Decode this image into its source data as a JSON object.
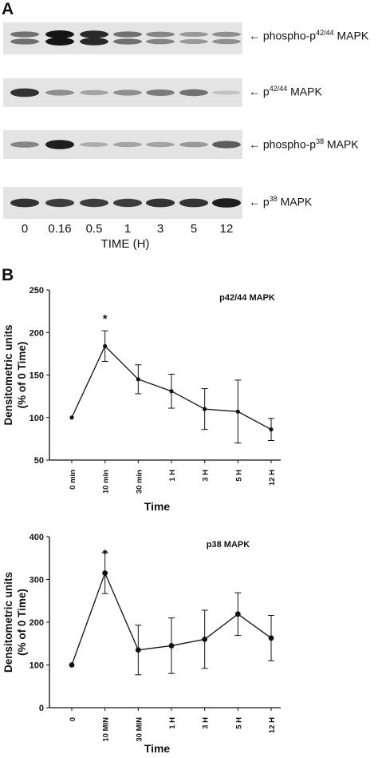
{
  "panel_a": {
    "letter": "A",
    "blots": [
      {
        "arrow": "←",
        "prefix": "phospho-p",
        "sup": "42/44",
        "suffix": " MAPK",
        "band_intensity": [
          0.55,
          1.0,
          0.9,
          0.55,
          0.45,
          0.35,
          0.4
        ],
        "doublet": true
      },
      {
        "arrow": "←",
        "prefix": "p",
        "sup": "42/44",
        "suffix": " MAPK",
        "band_intensity": [
          0.85,
          0.4,
          0.3,
          0.4,
          0.5,
          0.55,
          0.15
        ],
        "doublet": false
      },
      {
        "arrow": "←",
        "prefix": "phospho-p",
        "sup": "38",
        "suffix": " MAPK",
        "band_intensity": [
          0.45,
          0.95,
          0.25,
          0.3,
          0.3,
          0.35,
          0.65
        ],
        "doublet": false
      },
      {
        "arrow": "←",
        "prefix": "p",
        "sup": "38",
        "suffix": " MAPK",
        "band_intensity": [
          0.85,
          0.8,
          0.8,
          0.8,
          0.85,
          0.85,
          0.95
        ],
        "doublet": false
      }
    ],
    "lanes": [
      "0",
      "0.16",
      "0.5",
      "1",
      "3",
      "5",
      "12"
    ],
    "xlabel": "TIME (H)"
  },
  "panel_b": {
    "letter": "B"
  },
  "chart_data": [
    {
      "type": "line",
      "title": "p42/44 MAPK",
      "categories": [
        "0 min",
        "10 min",
        "30 min",
        "1 H",
        "3 H",
        "5 H",
        "12 H"
      ],
      "values": [
        100,
        184,
        145,
        131,
        110,
        107,
        86
      ],
      "errors": [
        0,
        18,
        17,
        20,
        24,
        37,
        13
      ],
      "significance": [
        "",
        "*",
        "",
        "",
        "",
        "",
        ""
      ],
      "xlabel": "Time",
      "ylabel_line1": "Densitometric units",
      "ylabel_line2": "(% of 0 Time)",
      "ylim": [
        50,
        250
      ],
      "yticks": [
        50,
        100,
        150,
        200,
        250
      ],
      "grid": false,
      "color": "#111111"
    },
    {
      "type": "line",
      "title": "p38 MAPK",
      "categories": [
        "0",
        "10 MIN",
        "30 MIN",
        "1 H",
        "3 H",
        "5 H",
        "12 H"
      ],
      "values": [
        100,
        315,
        135,
        145,
        160,
        219,
        163
      ],
      "errors": [
        0,
        48,
        58,
        65,
        68,
        50,
        53
      ],
      "significance": [
        "",
        "*",
        "",
        "",
        "",
        "",
        ""
      ],
      "xlabel": "Time",
      "ylabel_line1": "Densitometric units",
      "ylabel_line2": "(% of 0 Time)",
      "ylim": [
        0,
        400
      ],
      "yticks": [
        0,
        100,
        200,
        300,
        400
      ],
      "grid": false,
      "color": "#111111"
    }
  ]
}
